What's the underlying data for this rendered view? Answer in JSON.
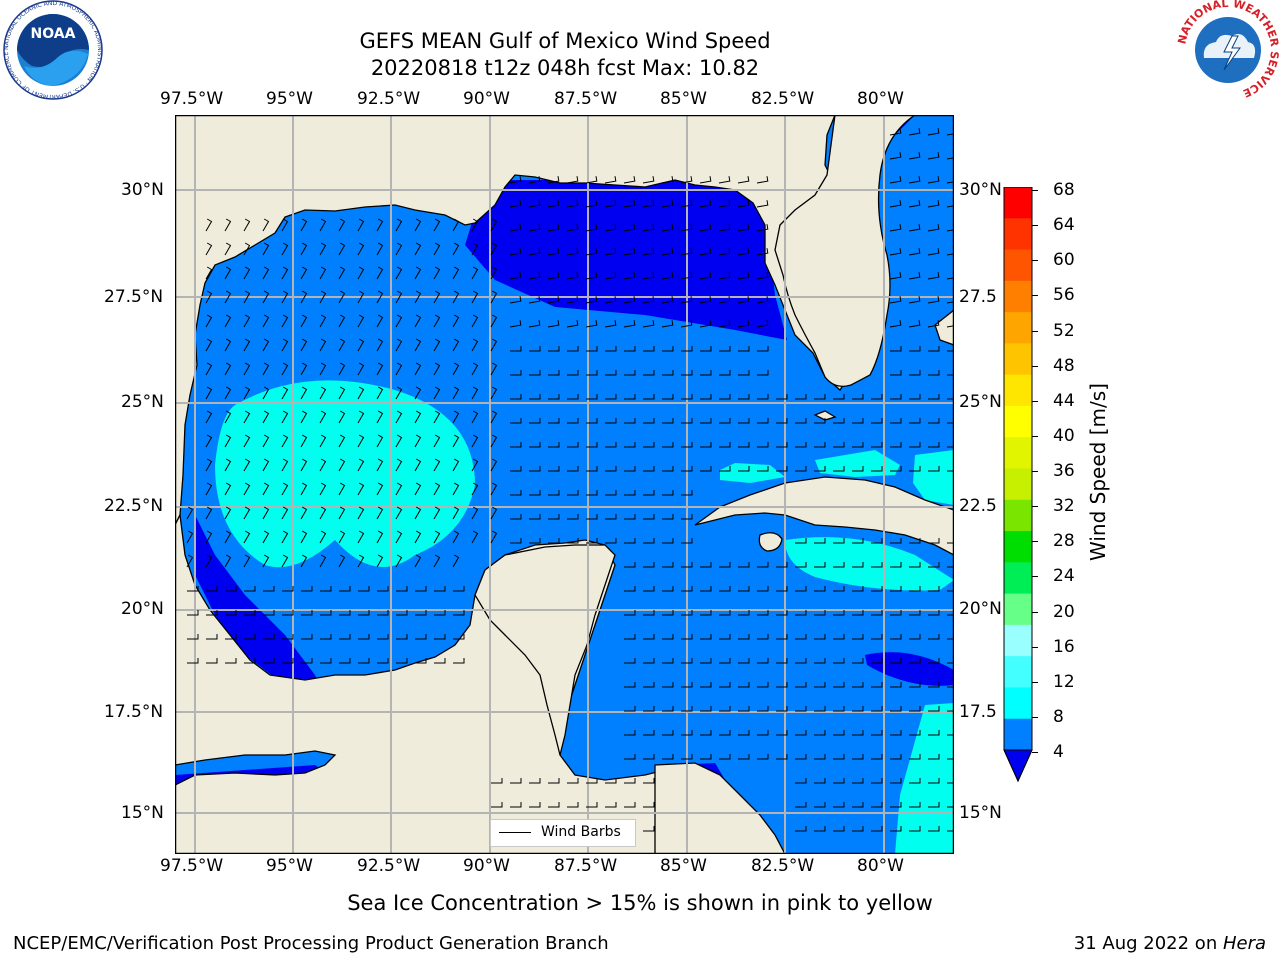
{
  "title": {
    "line1": "GEFS MEAN Gulf of Mexico Wind Speed",
    "line2": "20220818 t12z 048h fcst   Max: 10.82"
  },
  "map": {
    "lon_labels": [
      "97.5°W",
      "95°W",
      "92.5°W",
      "90°W",
      "87.5°W",
      "85°W",
      "82.5°W",
      "80°W"
    ],
    "lat_labels": [
      "30°N",
      "27.5°N",
      "25°N",
      "22.5°N",
      "20°N",
      "17.5°N",
      "15°N"
    ],
    "lat_labels_right": [
      "30°N",
      "27.5",
      "25°N",
      "22.5",
      "20°N",
      "17.5",
      "15°N"
    ],
    "legend_label": "Wind Barbs",
    "colors": {
      "land": "#efecdc",
      "ocean_4_8": "#0080ff",
      "ocean_0_4": "#0000f0",
      "ocean_8_12": "#00ffee",
      "grid": "#b4b4b4"
    }
  },
  "colorbar": {
    "label": "Wind Speed [m/s]",
    "ticks": [
      "68",
      "64",
      "60",
      "56",
      "52",
      "48",
      "44",
      "40",
      "36",
      "32",
      "28",
      "24",
      "20",
      "16",
      "12",
      "8",
      "4"
    ],
    "colors": [
      "#ff0000",
      "#ff3300",
      "#ff5500",
      "#ff7f00",
      "#ffa500",
      "#ffc400",
      "#ffe600",
      "#ffff00",
      "#e2f500",
      "#c6f000",
      "#7ae600",
      "#00dd00",
      "#00ee55",
      "#66ff88",
      "#99ffff",
      "#44ffff",
      "#00ffff",
      "#0080ff"
    ],
    "extend_color": "#0000f0"
  },
  "subtitle": "Sea Ice Concentration > 15% is shown in pink to yellow",
  "footer": {
    "left": "NCEP/EMC/Verification Post Processing Product Generation Branch",
    "right_prefix": "31 Aug 2022 on ",
    "right_machine": "Hera"
  },
  "logos": {
    "noaa_text": "NOAA",
    "noaa_ring": "NATIONAL OCEANIC AND ATMOSPHERIC ADMINISTRATION · U.S. DEPARTMENT OF COMMERCE ·",
    "nws_ring": "NATIONAL WEATHER SERVICE"
  }
}
